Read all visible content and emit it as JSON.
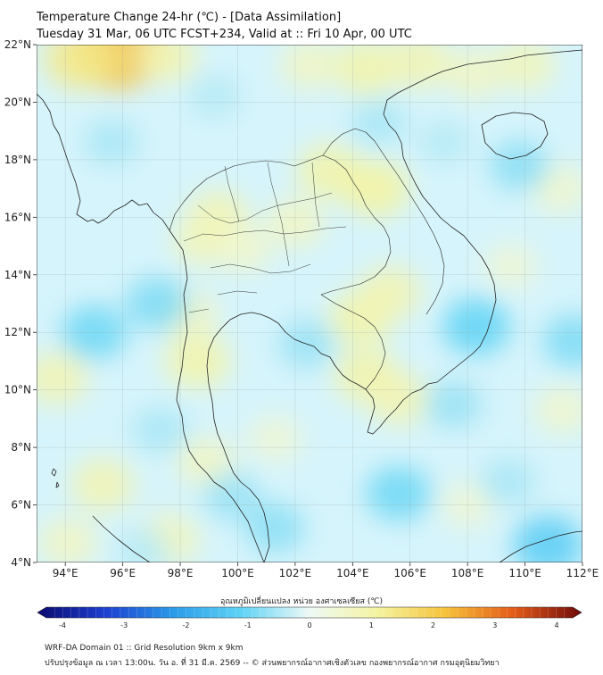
{
  "header": {
    "title": "Temperature Change 24-hr (℃) - [Data Assimilation]",
    "subtitle": "Tuesday 31 Mar, 06 UTC FCST+234, Valid at :: Fri 10 Apr, 00 UTC"
  },
  "map": {
    "lon_range": [
      93,
      112
    ],
    "lat_range": [
      4,
      22
    ],
    "lon_ticks": [
      {
        "value": 94,
        "label": "94°E"
      },
      {
        "value": 96,
        "label": "96°E"
      },
      {
        "value": 98,
        "label": "98°E"
      },
      {
        "value": 100,
        "label": "100°E"
      },
      {
        "value": 102,
        "label": "102°E"
      },
      {
        "value": 104,
        "label": "104°E"
      },
      {
        "value": 106,
        "label": "106°E"
      },
      {
        "value": 108,
        "label": "108°E"
      },
      {
        "value": 110,
        "label": "110°E"
      },
      {
        "value": 112,
        "label": "112°E"
      }
    ],
    "lat_ticks": [
      {
        "value": 4,
        "label": "4°N"
      },
      {
        "value": 6,
        "label": "6°N"
      },
      {
        "value": 8,
        "label": "8°N"
      },
      {
        "value": 10,
        "label": "10°N"
      },
      {
        "value": 12,
        "label": "12°N"
      },
      {
        "value": 14,
        "label": "14°N"
      },
      {
        "value": 16,
        "label": "16°N"
      },
      {
        "value": 18,
        "label": "18°N"
      },
      {
        "value": 20,
        "label": "20°N"
      },
      {
        "value": 22,
        "label": "22°N"
      }
    ],
    "grid": true,
    "background_color": "#d6f4fb",
    "coastline_color": "#222222",
    "blobs": [
      {
        "lon": 95.8,
        "lat": 21.8,
        "value": 2.0
      },
      {
        "lon": 94.5,
        "lat": 21.5,
        "value": 1.2
      },
      {
        "lon": 97.5,
        "lat": 21.6,
        "value": 0.8
      },
      {
        "lon": 102.5,
        "lat": 21.3,
        "value": 0.6
      },
      {
        "lon": 104.5,
        "lat": 21.2,
        "value": 0.9
      },
      {
        "lon": 106.3,
        "lat": 21.4,
        "value": 0.8
      },
      {
        "lon": 108.2,
        "lat": 21.0,
        "value": 0.6
      },
      {
        "lon": 110.0,
        "lat": 21.3,
        "value": 0.7
      },
      {
        "lon": 103.2,
        "lat": 17.6,
        "value": 0.9
      },
      {
        "lon": 104.8,
        "lat": 17.0,
        "value": 1.0
      },
      {
        "lon": 99.3,
        "lat": 16.0,
        "value": 0.8
      },
      {
        "lon": 98.8,
        "lat": 15.2,
        "value": 0.7
      },
      {
        "lon": 102.0,
        "lat": 15.8,
        "value": 0.6
      },
      {
        "lon": 104.3,
        "lat": 12.5,
        "value": 0.9
      },
      {
        "lon": 105.3,
        "lat": 13.4,
        "value": 0.8
      },
      {
        "lon": 104.5,
        "lat": 10.5,
        "value": 0.9
      },
      {
        "lon": 105.6,
        "lat": 9.7,
        "value": 0.8
      },
      {
        "lon": 98.6,
        "lat": 11.0,
        "value": 0.9
      },
      {
        "lon": 98.3,
        "lat": 12.6,
        "value": 0.6
      },
      {
        "lon": 93.7,
        "lat": 10.4,
        "value": 0.8
      },
      {
        "lon": 95.3,
        "lat": 6.7,
        "value": 0.8
      },
      {
        "lon": 94.1,
        "lat": 4.7,
        "value": 0.6
      },
      {
        "lon": 97.6,
        "lat": 4.8,
        "value": 0.7
      },
      {
        "lon": 98.9,
        "lat": 7.5,
        "value": 0.6
      },
      {
        "lon": 100.2,
        "lat": 14.9,
        "value": 0.5
      },
      {
        "lon": 111.2,
        "lat": 17.0,
        "value": 0.5
      },
      {
        "lon": 109.5,
        "lat": 14.3,
        "value": 0.4
      },
      {
        "lon": 111.3,
        "lat": 9.3,
        "value": 0.5
      },
      {
        "lon": 108.0,
        "lat": 6.0,
        "value": 0.4
      },
      {
        "lon": 101.3,
        "lat": 8.3,
        "value": 0.4
      },
      {
        "lon": 99.2,
        "lat": 20.2,
        "value": -0.4
      },
      {
        "lon": 95.6,
        "lat": 18.6,
        "value": -0.5
      },
      {
        "lon": 97.2,
        "lat": 13.0,
        "value": -0.8
      },
      {
        "lon": 95.0,
        "lat": 12.0,
        "value": -0.9
      },
      {
        "lon": 102.4,
        "lat": 11.6,
        "value": -0.6
      },
      {
        "lon": 108.3,
        "lat": 12.2,
        "value": -1.0
      },
      {
        "lon": 109.8,
        "lat": 17.8,
        "value": -0.7
      },
      {
        "lon": 111.7,
        "lat": 11.7,
        "value": -0.8
      },
      {
        "lon": 107.5,
        "lat": 9.5,
        "value": -0.6
      },
      {
        "lon": 105.6,
        "lat": 6.4,
        "value": -0.9
      },
      {
        "lon": 110.8,
        "lat": 4.6,
        "value": -1.1
      },
      {
        "lon": 101.3,
        "lat": 5.2,
        "value": -0.7
      },
      {
        "lon": 99.8,
        "lat": 6.3,
        "value": -0.6
      },
      {
        "lon": 97.3,
        "lat": 8.6,
        "value": -0.5
      },
      {
        "lon": 104.9,
        "lat": 19.3,
        "value": -0.5
      },
      {
        "lon": 107.2,
        "lat": 18.6,
        "value": -0.4
      },
      {
        "lon": 96.7,
        "lat": 4.4,
        "value": -0.4
      },
      {
        "lon": 109.4,
        "lat": 6.8,
        "value": -0.5
      }
    ]
  },
  "colorbar": {
    "label": "อุณหภูมิเปลี่ยนแปลง หน่วย องศาเซลเซียส (℃)",
    "min": -4,
    "max": 4,
    "tick_labels": [
      "-4",
      "-3",
      "-2",
      "-1",
      "0",
      "1",
      "2",
      "3",
      "4"
    ],
    "colors": [
      "#0a0a6e",
      "#1d3fd0",
      "#2a9be8",
      "#5fd3f5",
      "#eef9f6",
      "#f4f4a0",
      "#f6c23a",
      "#e45a18",
      "#6e0a0a"
    ]
  },
  "footer": {
    "line1": "WRF-DA Domain 01 :: Grid Resolution 9km x 9km",
    "line2": "ปรับปรุงข้อมูล ณ เวลา 13:00น. วัน อ. ที่ 31 มี.ค. 2569 -- © ส่วนพยากรณ์อากาศเชิงตัวเลข กองพยากรณ์อากาศ กรมอุตุนิยมวิทยา"
  }
}
